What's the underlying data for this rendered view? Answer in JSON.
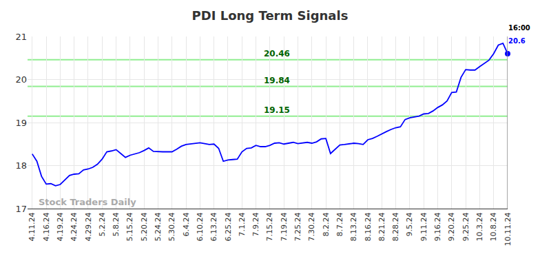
{
  "chart_data": {
    "type": "line",
    "title": "PDI Long Term Signals",
    "categories": [
      "4.11.24",
      null,
      null,
      "4.16.24",
      null,
      null,
      "4.19.24",
      null,
      null,
      "4.24.24",
      null,
      null,
      "4.29.24",
      null,
      null,
      "5.2.24",
      null,
      null,
      "5.8.24",
      null,
      null,
      "5.15.24",
      null,
      null,
      "5.20.24",
      null,
      null,
      "5.24.24",
      null,
      null,
      "5.30.24",
      null,
      null,
      "6.4.24",
      null,
      null,
      "6.10.24",
      null,
      null,
      "6.13.24",
      null,
      null,
      "6.25.24",
      null,
      null,
      "7.1.24",
      null,
      null,
      "7.9.24",
      null,
      null,
      "7.15.24",
      null,
      null,
      "7.19.24",
      null,
      null,
      "7.25.24",
      null,
      null,
      "7.30.24",
      null,
      null,
      "8.2.24",
      null,
      null,
      "8.7.24",
      null,
      null,
      "8.13.24",
      null,
      null,
      "8.16.24",
      null,
      null,
      "8.21.24",
      null,
      null,
      "8.28.24",
      null,
      null,
      "9.5.24",
      null,
      null,
      "9.11.24",
      null,
      null,
      "9.16.24",
      null,
      null,
      "9.20.24",
      null,
      null,
      "9.25.24",
      null,
      null,
      "10.3.24",
      null,
      null,
      "10.8.24",
      null,
      null,
      "10.11.24"
    ],
    "values": [
      18.27,
      18.1,
      17.75,
      17.57,
      17.58,
      17.53,
      17.56,
      17.67,
      17.77,
      17.8,
      17.81,
      17.9,
      17.92,
      17.96,
      18.03,
      18.15,
      18.32,
      18.34,
      18.37,
      18.28,
      18.19,
      18.24,
      18.27,
      18.3,
      18.35,
      18.41,
      18.33,
      18.32,
      18.32,
      18.32,
      18.32,
      18.38,
      18.45,
      18.49,
      18.5,
      18.51,
      18.53,
      18.51,
      18.49,
      18.5,
      18.4,
      18.1,
      18.13,
      18.14,
      18.15,
      18.32,
      18.4,
      18.41,
      18.47,
      18.44,
      18.44,
      18.47,
      18.52,
      18.53,
      18.5,
      18.52,
      18.54,
      18.51,
      18.53,
      18.54,
      18.52,
      18.55,
      18.62,
      18.63,
      18.28,
      18.38,
      18.48,
      18.49,
      18.51,
      18.52,
      18.51,
      18.49,
      18.6,
      18.63,
      18.68,
      18.74,
      18.79,
      18.84,
      18.88,
      18.9,
      19.07,
      19.11,
      19.13,
      19.15,
      19.2,
      19.21,
      19.27,
      19.35,
      19.41,
      19.5,
      19.7,
      19.71,
      20.05,
      20.23,
      20.22,
      20.22,
      20.3,
      20.38,
      20.45,
      20.6,
      20.8,
      20.84,
      20.6
    ],
    "color": "#0000ff",
    "levels": [
      20.46,
      19.84,
      19.15
    ],
    "last_time": "16:00",
    "watermark": "Stock Traders Daily",
    "ylim": [
      17,
      21
    ],
    "yticks": [
      17,
      18,
      19,
      20,
      21
    ],
    "grid": true,
    "marker": "last"
  }
}
